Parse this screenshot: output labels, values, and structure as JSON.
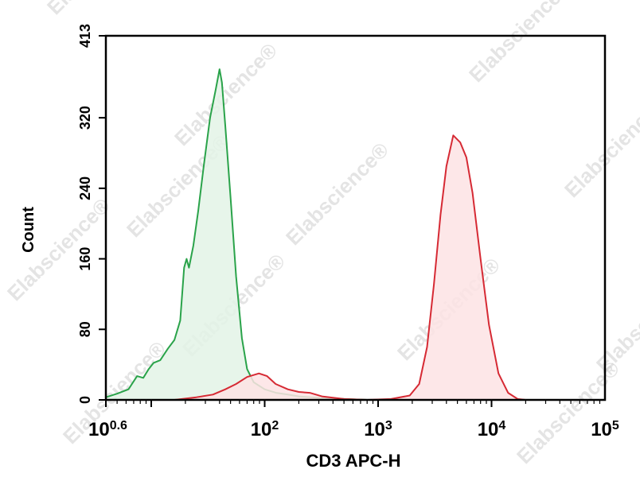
{
  "chart_data": {
    "type": "area",
    "xlabel": "CD3 APC-H",
    "ylabel": "Count",
    "x_scale": "log",
    "xlim": [
      3.98,
      100000
    ],
    "ylim": [
      0,
      413
    ],
    "x_ticks": [
      {
        "value": 3.98,
        "base": "10",
        "exp": "0.6"
      },
      {
        "value": 100,
        "base": "10",
        "exp": "2"
      },
      {
        "value": 1000,
        "base": "10",
        "exp": "3"
      },
      {
        "value": 10000,
        "base": "10",
        "exp": "4"
      },
      {
        "value": 100000,
        "base": "10",
        "exp": "5"
      }
    ],
    "y_ticks": [
      "0",
      "80",
      "160",
      "240",
      "320",
      "413"
    ],
    "y_tick_values": [
      0,
      80,
      160,
      240,
      320,
      413
    ],
    "grid": false,
    "series": [
      {
        "color": "#2aa34a",
        "fill": "#e3f3e6",
        "points": [
          [
            3.98,
            3
          ],
          [
            5,
            7
          ],
          [
            6.3,
            12
          ],
          [
            7.5,
            27
          ],
          [
            8.5,
            25
          ],
          [
            9.5,
            35
          ],
          [
            10.5,
            42
          ],
          [
            12,
            45
          ],
          [
            14,
            58
          ],
          [
            16,
            68
          ],
          [
            18,
            90
          ],
          [
            19.5,
            150
          ],
          [
            20.5,
            160
          ],
          [
            21.5,
            150
          ],
          [
            23.5,
            175
          ],
          [
            26,
            215
          ],
          [
            29,
            265
          ],
          [
            33,
            320
          ],
          [
            37,
            352
          ],
          [
            40,
            375
          ],
          [
            42,
            360
          ],
          [
            45,
            310
          ],
          [
            50,
            230
          ],
          [
            56,
            140
          ],
          [
            63,
            70
          ],
          [
            70,
            35
          ],
          [
            80,
            20
          ],
          [
            100,
            12
          ],
          [
            126,
            8
          ],
          [
            160,
            6
          ],
          [
            200,
            4
          ],
          [
            320,
            2
          ],
          [
            500,
            1
          ],
          [
            800,
            0
          ]
        ]
      },
      {
        "color": "#d62a34",
        "fill": "#fde3e4",
        "points": [
          [
            16,
            0
          ],
          [
            25,
            3
          ],
          [
            35,
            6
          ],
          [
            45,
            12
          ],
          [
            56,
            18
          ],
          [
            70,
            26
          ],
          [
            89,
            30
          ],
          [
            105,
            27
          ],
          [
            125,
            18
          ],
          [
            160,
            12
          ],
          [
            200,
            9
          ],
          [
            250,
            8
          ],
          [
            320,
            4
          ],
          [
            500,
            1
          ],
          [
            800,
            0
          ],
          [
            1300,
            1
          ],
          [
            1900,
            5
          ],
          [
            2300,
            18
          ],
          [
            2700,
            60
          ],
          [
            3100,
            130
          ],
          [
            3550,
            210
          ],
          [
            4000,
            265
          ],
          [
            4600,
            300
          ],
          [
            5300,
            292
          ],
          [
            6000,
            275
          ],
          [
            6800,
            235
          ],
          [
            8000,
            160
          ],
          [
            9500,
            85
          ],
          [
            11500,
            30
          ],
          [
            14000,
            8
          ],
          [
            17000,
            1
          ],
          [
            20000,
            0
          ]
        ]
      }
    ]
  },
  "watermark": {
    "text": "Elabscience",
    "mark": "®"
  }
}
